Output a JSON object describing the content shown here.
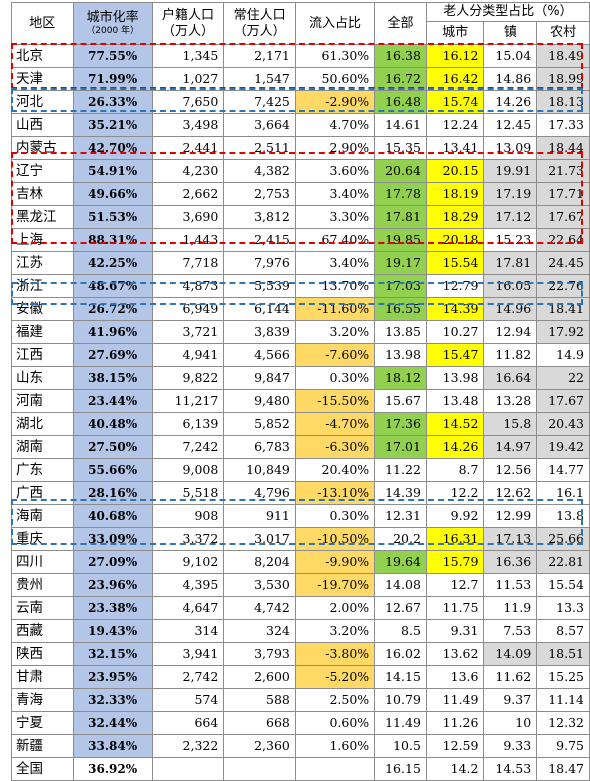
{
  "headers": {
    "region": "地区",
    "urbanization": "城市化率",
    "urbanization_sub": "（2000 年）",
    "huji": "户籍人口",
    "huji_unit": "（万人）",
    "changzhu": "常住人口",
    "changzhu_unit": "（万人）",
    "inflow": "流入占比",
    "total": "全部",
    "elderly_group": "老人分类型占比（%）",
    "city": "城市",
    "town": "镇",
    "rural": "农村"
  },
  "colors": {
    "urbanization_fill": "#b4c6e7",
    "inflow_negative_fill": "#ffd966",
    "total_high_fill": "#92d050",
    "city_high_fill": "#ffff00",
    "rural_high_fill": "#d9d9d9",
    "box_red": "#e00000",
    "box_blue": "#2e75b6"
  },
  "rows": [
    {
      "region": "北京",
      "urb": "77.55%",
      "huji": "1,345",
      "chang": "2,171",
      "inflow": "61.30%",
      "total": "16.38",
      "city": "16.12",
      "town": "15.04",
      "rural": "18.49",
      "i_hl": false,
      "t_hl": true,
      "c_hl": true,
      "tw_hl": false,
      "r_hl": true
    },
    {
      "region": "天津",
      "urb": "71.99%",
      "huji": "1,027",
      "chang": "1,547",
      "inflow": "50.60%",
      "total": "16.72",
      "city": "16.42",
      "town": "14.86",
      "rural": "18.99",
      "i_hl": false,
      "t_hl": true,
      "c_hl": true,
      "tw_hl": false,
      "r_hl": true
    },
    {
      "region": "河北",
      "urb": "26.33%",
      "huji": "7,650",
      "chang": "7,425",
      "inflow": "-2.90%",
      "total": "16.48",
      "city": "15.74",
      "town": "14.26",
      "rural": "18.13",
      "i_hl": true,
      "t_hl": true,
      "c_hl": true,
      "tw_hl": false,
      "r_hl": true
    },
    {
      "region": "山西",
      "urb": "35.21%",
      "huji": "3,498",
      "chang": "3,664",
      "inflow": "4.70%",
      "total": "14.61",
      "city": "12.24",
      "town": "12.45",
      "rural": "17.33",
      "i_hl": false,
      "t_hl": false,
      "c_hl": false,
      "tw_hl": false,
      "r_hl": false
    },
    {
      "region": "内蒙古",
      "urb": "42.70%",
      "huji": "2,441",
      "chang": "2,511",
      "inflow": "2.90%",
      "total": "15.35",
      "city": "13.41",
      "town": "13.09",
      "rural": "18.44",
      "i_hl": false,
      "t_hl": false,
      "c_hl": false,
      "tw_hl": false,
      "r_hl": true
    },
    {
      "region": "辽宁",
      "urb": "54.91%",
      "huji": "4,230",
      "chang": "4,382",
      "inflow": "3.60%",
      "total": "20.64",
      "city": "20.15",
      "town": "19.91",
      "rural": "21.73",
      "i_hl": false,
      "t_hl": true,
      "c_hl": true,
      "tw_hl": true,
      "r_hl": true
    },
    {
      "region": "吉林",
      "urb": "49.66%",
      "huji": "2,662",
      "chang": "2,753",
      "inflow": "3.40%",
      "total": "17.78",
      "city": "18.19",
      "town": "17.19",
      "rural": "17.71",
      "i_hl": false,
      "t_hl": true,
      "c_hl": true,
      "tw_hl": true,
      "r_hl": true
    },
    {
      "region": "黑龙江",
      "urb": "51.53%",
      "huji": "3,690",
      "chang": "3,812",
      "inflow": "3.30%",
      "total": "17.81",
      "city": "18.29",
      "town": "17.12",
      "rural": "17.67",
      "i_hl": false,
      "t_hl": true,
      "c_hl": true,
      "tw_hl": true,
      "r_hl": true
    },
    {
      "region": "上海",
      "urb": "88.31%",
      "huji": "1,443",
      "chang": "2,415",
      "inflow": "67.40%",
      "total": "19.85",
      "city": "20.18",
      "town": "15.23",
      "rural": "22.64",
      "i_hl": false,
      "t_hl": true,
      "c_hl": true,
      "tw_hl": false,
      "r_hl": true
    },
    {
      "region": "江苏",
      "urb": "42.25%",
      "huji": "7,718",
      "chang": "7,976",
      "inflow": "3.40%",
      "total": "19.17",
      "city": "15.54",
      "town": "17.81",
      "rural": "24.45",
      "i_hl": false,
      "t_hl": true,
      "c_hl": true,
      "tw_hl": true,
      "r_hl": true
    },
    {
      "region": "浙江",
      "urb": "48.67%",
      "huji": "4,873",
      "chang": "5,539",
      "inflow": "13.70%",
      "total": "17.03",
      "city": "12.79",
      "town": "16.05",
      "rural": "22.76",
      "i_hl": false,
      "t_hl": true,
      "c_hl": false,
      "tw_hl": true,
      "r_hl": true
    },
    {
      "region": "安徽",
      "urb": "26.72%",
      "huji": "6,949",
      "chang": "6,144",
      "inflow": "-11.60%",
      "total": "16.55",
      "city": "14.39",
      "town": "14.96",
      "rural": "18.41",
      "i_hl": true,
      "t_hl": true,
      "c_hl": true,
      "tw_hl": true,
      "r_hl": true
    },
    {
      "region": "福建",
      "urb": "41.96%",
      "huji": "3,721",
      "chang": "3,839",
      "inflow": "3.20%",
      "total": "13.85",
      "city": "10.27",
      "town": "12.94",
      "rural": "17.92",
      "i_hl": false,
      "t_hl": false,
      "c_hl": false,
      "tw_hl": false,
      "r_hl": true
    },
    {
      "region": "江西",
      "urb": "27.69%",
      "huji": "4,941",
      "chang": "4,566",
      "inflow": "-7.60%",
      "total": "13.98",
      "city": "15.47",
      "town": "11.82",
      "rural": "14.9",
      "i_hl": true,
      "t_hl": false,
      "c_hl": true,
      "tw_hl": false,
      "r_hl": false
    },
    {
      "region": "山东",
      "urb": "38.15%",
      "huji": "9,822",
      "chang": "9,847",
      "inflow": "0.30%",
      "total": "18.12",
      "city": "13.98",
      "town": "16.64",
      "rural": "22",
      "i_hl": false,
      "t_hl": true,
      "c_hl": false,
      "tw_hl": true,
      "r_hl": true
    },
    {
      "region": "河南",
      "urb": "23.44%",
      "huji": "11,217",
      "chang": "9,480",
      "inflow": "-15.50%",
      "total": "15.67",
      "city": "13.48",
      "town": "13.28",
      "rural": "17.67",
      "i_hl": true,
      "t_hl": false,
      "c_hl": false,
      "tw_hl": false,
      "r_hl": true
    },
    {
      "region": "湖北",
      "urb": "40.48%",
      "huji": "6,139",
      "chang": "5,852",
      "inflow": "-4.70%",
      "total": "17.36",
      "city": "14.52",
      "town": "15.8",
      "rural": "20.43",
      "i_hl": true,
      "t_hl": true,
      "c_hl": true,
      "tw_hl": true,
      "r_hl": true
    },
    {
      "region": "湖南",
      "urb": "27.50%",
      "huji": "7,242",
      "chang": "6,783",
      "inflow": "-6.30%",
      "total": "17.01",
      "city": "14.26",
      "town": "14.97",
      "rural": "19.42",
      "i_hl": true,
      "t_hl": true,
      "c_hl": true,
      "tw_hl": true,
      "r_hl": true
    },
    {
      "region": "广东",
      "urb": "55.66%",
      "huji": "9,008",
      "chang": "10,849",
      "inflow": "20.40%",
      "total": "11.22",
      "city": "8.7",
      "town": "12.56",
      "rural": "14.77",
      "i_hl": false,
      "t_hl": false,
      "c_hl": false,
      "tw_hl": false,
      "r_hl": false
    },
    {
      "region": "广西",
      "urb": "28.16%",
      "huji": "5,518",
      "chang": "4,796",
      "inflow": "-13.10%",
      "total": "14.39",
      "city": "12.2",
      "town": "12.62",
      "rural": "16.1",
      "i_hl": true,
      "t_hl": false,
      "c_hl": false,
      "tw_hl": false,
      "r_hl": false
    },
    {
      "region": "海南",
      "urb": "40.68%",
      "huji": "908",
      "chang": "911",
      "inflow": "0.30%",
      "total": "12.31",
      "city": "9.92",
      "town": "12.99",
      "rural": "13.8",
      "i_hl": false,
      "t_hl": false,
      "c_hl": false,
      "tw_hl": false,
      "r_hl": false
    },
    {
      "region": "重庆",
      "urb": "33.09%",
      "huji": "3,372",
      "chang": "3,017",
      "inflow": "-10.50%",
      "total": "20.2",
      "city": "16.31",
      "town": "17.13",
      "rural": "25.66",
      "i_hl": true,
      "t_hl": false,
      "c_hl": true,
      "tw_hl": true,
      "r_hl": true
    },
    {
      "region": "四川",
      "urb": "27.09%",
      "huji": "9,102",
      "chang": "8,204",
      "inflow": "-9.90%",
      "total": "19.64",
      "city": "15.79",
      "town": "16.36",
      "rural": "22.81",
      "i_hl": true,
      "t_hl": true,
      "c_hl": true,
      "tw_hl": true,
      "r_hl": true
    },
    {
      "region": "贵州",
      "urb": "23.96%",
      "huji": "4,395",
      "chang": "3,530",
      "inflow": "-19.70%",
      "total": "14.08",
      "city": "12.7",
      "town": "11.53",
      "rural": "15.54",
      "i_hl": true,
      "t_hl": false,
      "c_hl": false,
      "tw_hl": false,
      "r_hl": false
    },
    {
      "region": "云南",
      "urb": "23.38%",
      "huji": "4,647",
      "chang": "4,742",
      "inflow": "2.00%",
      "total": "12.67",
      "city": "11.75",
      "town": "11.9",
      "rural": "13.3",
      "i_hl": false,
      "t_hl": false,
      "c_hl": false,
      "tw_hl": false,
      "r_hl": false
    },
    {
      "region": "西藏",
      "urb": "19.43%",
      "huji": "314",
      "chang": "324",
      "inflow": "3.20%",
      "total": "8.5",
      "city": "9.31",
      "town": "7.53",
      "rural": "8.57",
      "i_hl": false,
      "t_hl": false,
      "c_hl": false,
      "tw_hl": false,
      "r_hl": false
    },
    {
      "region": "陕西",
      "urb": "32.15%",
      "huji": "3,941",
      "chang": "3,793",
      "inflow": "-3.80%",
      "total": "16.02",
      "city": "13.62",
      "town": "14.09",
      "rural": "18.51",
      "i_hl": true,
      "t_hl": false,
      "c_hl": false,
      "tw_hl": true,
      "r_hl": true
    },
    {
      "region": "甘肃",
      "urb": "23.95%",
      "huji": "2,742",
      "chang": "2,600",
      "inflow": "-5.20%",
      "total": "14.15",
      "city": "13.6",
      "town": "11.62",
      "rural": "15.25",
      "i_hl": true,
      "t_hl": false,
      "c_hl": false,
      "tw_hl": false,
      "r_hl": false
    },
    {
      "region": "青海",
      "urb": "32.33%",
      "huji": "574",
      "chang": "588",
      "inflow": "2.50%",
      "total": "10.79",
      "city": "11.49",
      "town": "9.37",
      "rural": "11.14",
      "i_hl": false,
      "t_hl": false,
      "c_hl": false,
      "tw_hl": false,
      "r_hl": false
    },
    {
      "region": "宁夏",
      "urb": "32.44%",
      "huji": "664",
      "chang": "668",
      "inflow": "0.60%",
      "total": "11.49",
      "city": "11.26",
      "town": "10",
      "rural": "12.32",
      "i_hl": false,
      "t_hl": false,
      "c_hl": false,
      "tw_hl": false,
      "r_hl": false
    },
    {
      "region": "新疆",
      "urb": "33.84%",
      "huji": "2,322",
      "chang": "2,360",
      "inflow": "1.60%",
      "total": "10.5",
      "city": "12.59",
      "town": "9.33",
      "rural": "9.75",
      "i_hl": false,
      "t_hl": false,
      "c_hl": false,
      "tw_hl": false,
      "r_hl": false
    },
    {
      "region": "全国",
      "urb": "36.92%",
      "huji": "",
      "chang": "",
      "inflow": "",
      "total": "16.15",
      "city": "14.2",
      "town": "14.53",
      "rural": "18.47",
      "i_hl": false,
      "t_hl": false,
      "c_hl": false,
      "tw_hl": false,
      "r_hl": false,
      "urb_plain": true
    }
  ]
}
